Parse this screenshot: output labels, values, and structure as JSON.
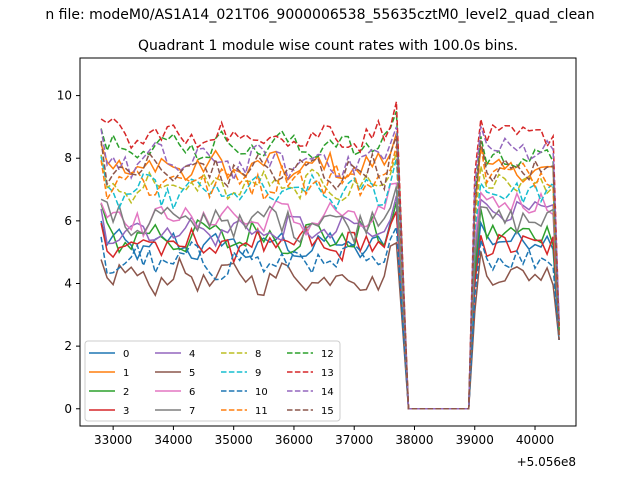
{
  "chart_data": {
    "type": "line",
    "suptitle": "n file: modeM0/AS1A14_021T06_9000006538_55635cztM0_level2_quad_clean",
    "title": "Quadrant 1 module wise count rates with 100.0s bins.",
    "xlabel": "",
    "ylabel": "",
    "x_offset_label": "+5.056e8",
    "xlim": [
      32450,
      40680
    ],
    "ylim": [
      -0.55,
      11.2
    ],
    "xticks": [
      33000,
      34000,
      35000,
      36000,
      37000,
      38000,
      39000,
      40000
    ],
    "xtick_labels": [
      "33000",
      "34000",
      "35000",
      "36000",
      "37000",
      "38000",
      "39000",
      "40000"
    ],
    "yticks": [
      0,
      2,
      4,
      6,
      8,
      10
    ],
    "ytick_labels": [
      "0",
      "2",
      "4",
      "6",
      "8",
      "10"
    ],
    "legend_location": "lower left",
    "legend_columns": 4,
    "segment_x": {
      "seg1_start": 32800,
      "seg1_end": 37700,
      "gap_start": 37900,
      "gap_end": 38900,
      "seg2_start": 39000,
      "seg2_end": 40400,
      "step": 100
    },
    "series": [
      {
        "name": "0",
        "color": "#1f77b4",
        "dash": "solid",
        "level1": 5.2,
        "level2": 5.4
      },
      {
        "name": "1",
        "color": "#ff7f0e",
        "dash": "solid",
        "level1": 7.7,
        "level2": 7.6
      },
      {
        "name": "2",
        "color": "#2ca02c",
        "dash": "solid",
        "level1": 5.5,
        "level2": 5.6
      },
      {
        "name": "3",
        "color": "#d62728",
        "dash": "solid",
        "level1": 5.2,
        "level2": 5.2
      },
      {
        "name": "4",
        "color": "#9467bd",
        "dash": "solid",
        "level1": 5.7,
        "level2": 6.3
      },
      {
        "name": "5",
        "color": "#8c564b",
        "dash": "solid",
        "level1": 4.2,
        "level2": 4.3
      },
      {
        "name": "6",
        "color": "#e377c2",
        "dash": "solid",
        "level1": 6.1,
        "level2": 6.6
      },
      {
        "name": "7",
        "color": "#7f7f7f",
        "dash": "solid",
        "level1": 6.0,
        "level2": 6.0
      },
      {
        "name": "8",
        "color": "#bcbd22",
        "dash": "dashed",
        "level1": 7.1,
        "level2": 7.2
      },
      {
        "name": "9",
        "color": "#17becf",
        "dash": "dashed",
        "level1": 6.9,
        "level2": 6.9
      },
      {
        "name": "10",
        "color": "#1f77b4",
        "dash": "dashed",
        "level1": 4.7,
        "level2": 4.8
      },
      {
        "name": "11",
        "color": "#ff7f0e",
        "dash": "dashed",
        "level1": 7.3,
        "level2": 7.5
      },
      {
        "name": "12",
        "color": "#2ca02c",
        "dash": "dashed",
        "level1": 8.4,
        "level2": 8.0
      },
      {
        "name": "13",
        "color": "#d62728",
        "dash": "dashed",
        "level1": 8.7,
        "level2": 8.7
      },
      {
        "name": "14",
        "color": "#9467bd",
        "dash": "dashed",
        "level1": 7.9,
        "level2": 8.3
      },
      {
        "name": "15",
        "color": "#8c564b",
        "dash": "dashed",
        "level1": 7.6,
        "level2": 7.6
      }
    ]
  }
}
